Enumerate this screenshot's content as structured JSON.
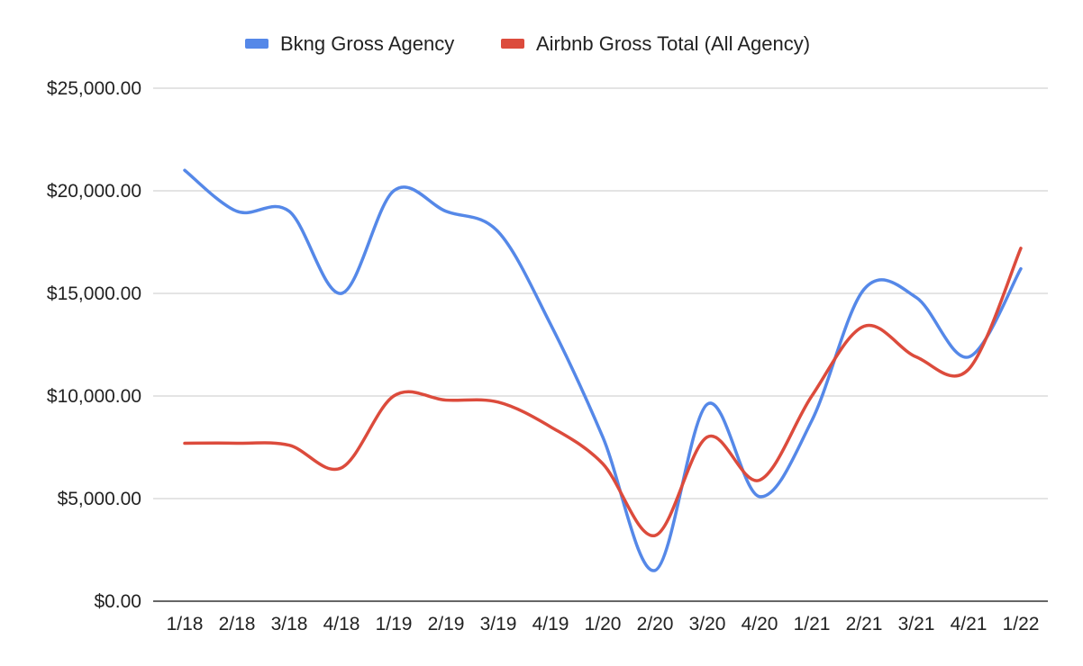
{
  "chart_data": {
    "type": "line",
    "title": "",
    "xlabel": "",
    "ylabel": "",
    "categories": [
      "1/18",
      "2/18",
      "3/18",
      "4/18",
      "1/19",
      "2/19",
      "3/19",
      "4/19",
      "1/20",
      "2/20",
      "3/20",
      "4/20",
      "1/21",
      "2/21",
      "3/21",
      "4/21",
      "1/22"
    ],
    "ylim": [
      0,
      25000
    ],
    "yticks": [
      0,
      5000,
      10000,
      15000,
      20000,
      25000
    ],
    "ytick_labels": [
      "$0.00",
      "$5,000.00",
      "$10,000.00",
      "$15,000.00",
      "$20,000.00",
      "$25,000.00"
    ],
    "grid": true,
    "legend_position": "top",
    "series": [
      {
        "name": "Bkng Gross Agency",
        "color": "#5588e8",
        "values": [
          21000,
          19000,
          19000,
          15000,
          20000,
          19000,
          18000,
          13500,
          8000,
          1500,
          9600,
          5100,
          8800,
          15200,
          14800,
          11900,
          16200
        ]
      },
      {
        "name": "Airbnb Gross Total (All Agency)",
        "color": "#dc4b3c",
        "values": [
          7700,
          7700,
          7600,
          6500,
          10000,
          9800,
          9700,
          8500,
          6700,
          3200,
          8000,
          5900,
          10000,
          13400,
          11900,
          11300,
          17200
        ]
      }
    ]
  }
}
